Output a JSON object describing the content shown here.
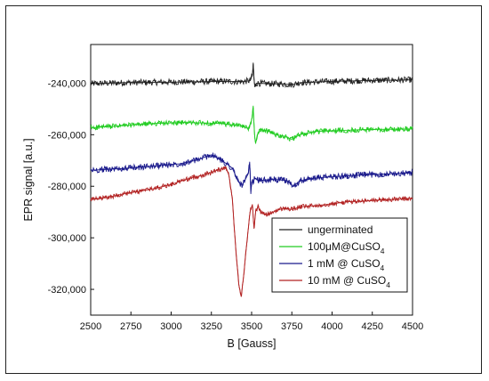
{
  "chart_data": {
    "type": "line",
    "xlabel": "B [Gauss]",
    "ylabel": "EPR signal [a.u.]",
    "xlim": [
      2500,
      4500
    ],
    "ylim": [
      -330000,
      -225000
    ],
    "x_ticks": [
      2500,
      2750,
      3000,
      3250,
      3500,
      3750,
      4000,
      4250,
      4500
    ],
    "x_tick_labels": [
      "2500",
      "2750",
      "3000",
      "3250",
      "3500",
      "3750",
      "4000",
      "4250",
      "4500"
    ],
    "y_ticks": [
      -240000,
      -260000,
      -280000,
      -300000,
      -320000
    ],
    "y_tick_labels": [
      "-240,000",
      "-260,000",
      "-280,000",
      "-300,000",
      "-320,000"
    ],
    "grid": false,
    "legend_position": "bottom-right",
    "series": [
      {
        "name": "ungerminated",
        "name_sub": "",
        "color": "#222222",
        "noise": 1200,
        "points": [
          [
            2500,
            -240200
          ],
          [
            2700,
            -239800
          ],
          [
            3000,
            -239600
          ],
          [
            3300,
            -239300
          ],
          [
            3450,
            -239400
          ],
          [
            3490,
            -239000
          ],
          [
            3505,
            -237000
          ],
          [
            3510,
            -232500
          ],
          [
            3515,
            -238500
          ],
          [
            3520,
            -241500
          ],
          [
            3530,
            -240000
          ],
          [
            3600,
            -240200
          ],
          [
            3700,
            -240300
          ],
          [
            3750,
            -240600
          ],
          [
            3800,
            -239800
          ],
          [
            4000,
            -239300
          ],
          [
            4200,
            -239000
          ],
          [
            4500,
            -238700
          ]
        ]
      },
      {
        "name": "100μM@CuSO",
        "name_sub": "4",
        "color": "#22cc22",
        "noise": 1000,
        "points": [
          [
            2500,
            -257300
          ],
          [
            2700,
            -256500
          ],
          [
            2900,
            -255600
          ],
          [
            3100,
            -255300
          ],
          [
            3300,
            -255600
          ],
          [
            3420,
            -256400
          ],
          [
            3480,
            -257500
          ],
          [
            3500,
            -254500
          ],
          [
            3510,
            -249500
          ],
          [
            3518,
            -260000
          ],
          [
            3525,
            -263500
          ],
          [
            3535,
            -260000
          ],
          [
            3560,
            -258000
          ],
          [
            3600,
            -258500
          ],
          [
            3650,
            -260000
          ],
          [
            3700,
            -260500
          ],
          [
            3750,
            -261800
          ],
          [
            3800,
            -260000
          ],
          [
            3900,
            -258700
          ],
          [
            4000,
            -258500
          ],
          [
            4200,
            -258000
          ],
          [
            4500,
            -257800
          ]
        ]
      },
      {
        "name": "1 mM @ CuSO",
        "name_sub": "4",
        "color": "#1a1a8c",
        "noise": 1200,
        "points": [
          [
            2500,
            -273800
          ],
          [
            2700,
            -273100
          ],
          [
            2900,
            -272100
          ],
          [
            3050,
            -271300
          ],
          [
            3150,
            -270000
          ],
          [
            3250,
            -267800
          ],
          [
            3300,
            -269500
          ],
          [
            3350,
            -271500
          ],
          [
            3380,
            -273000
          ],
          [
            3420,
            -278500
          ],
          [
            3440,
            -279500
          ],
          [
            3460,
            -277500
          ],
          [
            3480,
            -275000
          ],
          [
            3488,
            -270500
          ],
          [
            3495,
            -283000
          ],
          [
            3500,
            -279000
          ],
          [
            3520,
            -277000
          ],
          [
            3550,
            -277800
          ],
          [
            3600,
            -277500
          ],
          [
            3650,
            -277400
          ],
          [
            3720,
            -277800
          ],
          [
            3760,
            -280000
          ],
          [
            3800,
            -277800
          ],
          [
            3900,
            -276800
          ],
          [
            4000,
            -276300
          ],
          [
            4200,
            -275600
          ],
          [
            4500,
            -274800
          ]
        ]
      },
      {
        "name": "10 mM @ CuSO",
        "name_sub": "4",
        "color": "#b22222",
        "noise": 900,
        "points": [
          [
            2500,
            -285200
          ],
          [
            2600,
            -284400
          ],
          [
            2700,
            -283000
          ],
          [
            2800,
            -282000
          ],
          [
            2900,
            -280800
          ],
          [
            3000,
            -279300
          ],
          [
            3100,
            -277200
          ],
          [
            3200,
            -275600
          ],
          [
            3300,
            -273500
          ],
          [
            3340,
            -272500
          ],
          [
            3360,
            -276000
          ],
          [
            3380,
            -285000
          ],
          [
            3400,
            -303000
          ],
          [
            3420,
            -318000
          ],
          [
            3435,
            -322800
          ],
          [
            3450,
            -315000
          ],
          [
            3470,
            -302000
          ],
          [
            3490,
            -290000
          ],
          [
            3505,
            -287000
          ],
          [
            3515,
            -296500
          ],
          [
            3525,
            -289500
          ],
          [
            3540,
            -288000
          ],
          [
            3560,
            -290300
          ],
          [
            3600,
            -291000
          ],
          [
            3650,
            -289500
          ],
          [
            3700,
            -288500
          ],
          [
            3750,
            -289000
          ],
          [
            3800,
            -288000
          ],
          [
            3900,
            -287500
          ],
          [
            4000,
            -286800
          ],
          [
            4100,
            -286000
          ],
          [
            4200,
            -285800
          ],
          [
            4300,
            -285300
          ],
          [
            4500,
            -284800
          ]
        ]
      }
    ]
  }
}
